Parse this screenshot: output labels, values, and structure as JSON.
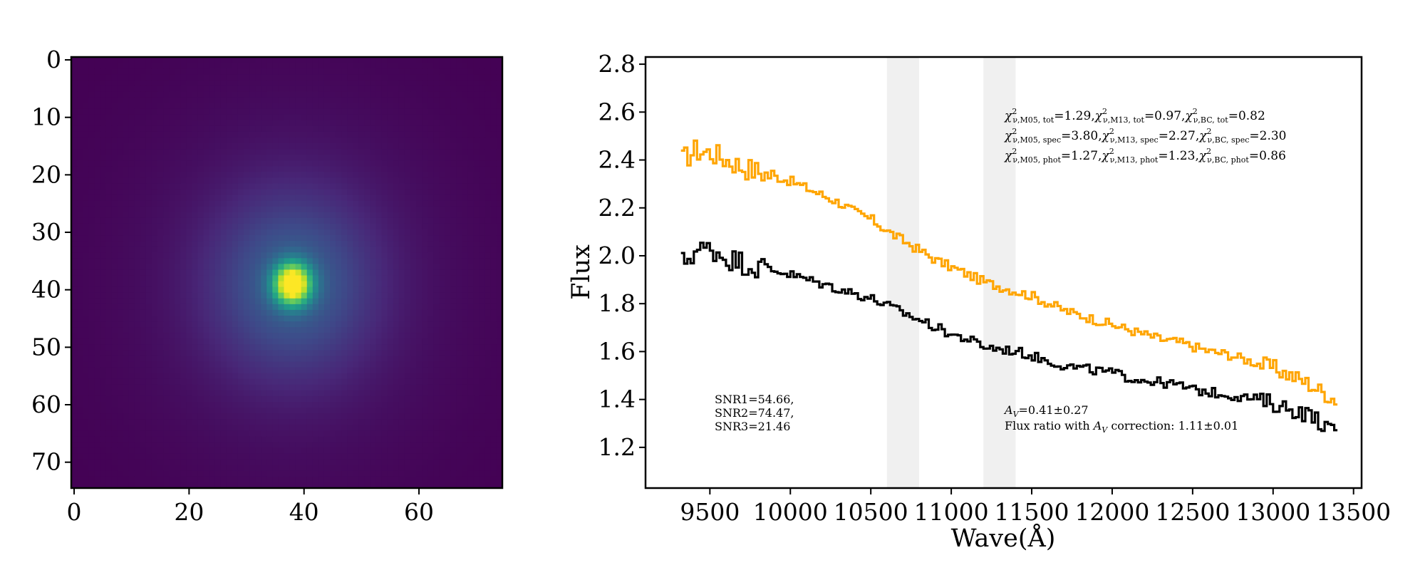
{
  "chart_data": [
    {
      "type": "heatmap",
      "colormap": "viridis",
      "grid": false,
      "x_ticks": [
        "0",
        "20",
        "40",
        "60"
      ],
      "y_ticks": [
        "0",
        "10",
        "20",
        "30",
        "40",
        "50",
        "60",
        "70"
      ],
      "xlim": [
        -0.5,
        74.5
      ],
      "ylim": [
        74.5,
        -0.5
      ],
      "image_size": [
        75,
        75
      ],
      "peak": {
        "x": 38,
        "y": 39
      },
      "colors": {
        "low": "#440154",
        "high": "#fde725"
      }
    },
    {
      "type": "line",
      "drawstyle": "steps",
      "xlabel": "Wave(Å)",
      "ylabel": "Flux",
      "xlim": [
        9100,
        13550
      ],
      "ylim": [
        1.03,
        2.83
      ],
      "grid": false,
      "x_ticks": [
        "9500",
        "10000",
        "10500",
        "11000",
        "11500",
        "12000",
        "12500",
        "13000",
        "13500"
      ],
      "y_ticks": [
        "1.2",
        "1.4",
        "1.6",
        "1.8",
        "2.0",
        "2.2",
        "2.4",
        "2.6",
        "2.8"
      ],
      "shaded_regions": [
        [
          10600,
          10800
        ],
        [
          11200,
          11400
        ]
      ],
      "series": [
        {
          "color": "#ffa500",
          "x": [
            9320,
            9400,
            9500,
            9600,
            9700,
            9800,
            9900,
            10000,
            10100,
            10200,
            10300,
            10400,
            10500,
            10600,
            10700,
            10800,
            10900,
            11000,
            11100,
            11200,
            11300,
            11400,
            11500,
            11600,
            11700,
            11800,
            11900,
            12000,
            12100,
            12200,
            12300,
            12400,
            12500,
            12600,
            12700,
            12800,
            12900,
            13000,
            13100,
            13200,
            13300,
            13380
          ],
          "y": [
            2.4,
            2.44,
            2.43,
            2.4,
            2.37,
            2.35,
            2.33,
            2.31,
            2.28,
            2.25,
            2.22,
            2.18,
            2.15,
            2.1,
            2.06,
            2.02,
            1.98,
            1.95,
            1.92,
            1.89,
            1.87,
            1.85,
            1.83,
            1.8,
            1.77,
            1.75,
            1.73,
            1.71,
            1.69,
            1.67,
            1.65,
            1.64,
            1.62,
            1.6,
            1.59,
            1.57,
            1.55,
            1.53,
            1.5,
            1.47,
            1.43,
            1.4
          ]
        },
        {
          "color": "#000000",
          "x": [
            9320,
            9400,
            9500,
            9600,
            9700,
            9800,
            9900,
            10000,
            10100,
            10200,
            10300,
            10400,
            10500,
            10600,
            10700,
            10800,
            10900,
            11000,
            11100,
            11200,
            11300,
            11400,
            11500,
            11600,
            11700,
            11800,
            11900,
            12000,
            12100,
            12200,
            12300,
            12400,
            12500,
            12600,
            12700,
            12800,
            12900,
            13000,
            13100,
            13200,
            13300,
            13380
          ],
          "y": [
            1.97,
            2.02,
            2.03,
            1.99,
            1.97,
            1.95,
            1.94,
            1.92,
            1.9,
            1.88,
            1.86,
            1.84,
            1.82,
            1.79,
            1.76,
            1.73,
            1.7,
            1.67,
            1.65,
            1.62,
            1.61,
            1.6,
            1.58,
            1.56,
            1.54,
            1.53,
            1.52,
            1.51,
            1.49,
            1.48,
            1.47,
            1.46,
            1.44,
            1.43,
            1.42,
            1.41,
            1.4,
            1.38,
            1.36,
            1.34,
            1.3,
            1.25
          ]
        }
      ],
      "annotations": {
        "snr": [
          "SNR1=54.66,",
          "SNR2=74.47,",
          "SNR3=21.46"
        ],
        "av_line": "=0.41±0.27",
        "av_symbol": "A",
        "av_sub": "V",
        "flux_ratio_prefix": "Flux ratio with ",
        "flux_ratio_suffix": " correction: 1.11±0.01",
        "chi_symbol": "χ",
        "chi_sup": "2",
        "chi_rows": [
          [
            {
              "sub": "ν,M05, tot",
              "value": "=1.29,"
            },
            {
              "sub": "ν,M13, tot",
              "value": "=0.97,"
            },
            {
              "sub": "ν,BC, tot",
              "value": "=0.82"
            }
          ],
          [
            {
              "sub": "ν,M05, spec",
              "value": "=3.80,"
            },
            {
              "sub": "ν,M13, spec",
              "value": "=2.27,"
            },
            {
              "sub": "ν,BC, spec",
              "value": "=2.30"
            }
          ],
          [
            {
              "sub": "ν,M05, phot",
              "value": "=1.27,"
            },
            {
              "sub": "ν,M13, phot",
              "value": "=1.23,"
            },
            {
              "sub": "ν,BC, phot",
              "value": "=0.86"
            }
          ]
        ]
      }
    }
  ]
}
